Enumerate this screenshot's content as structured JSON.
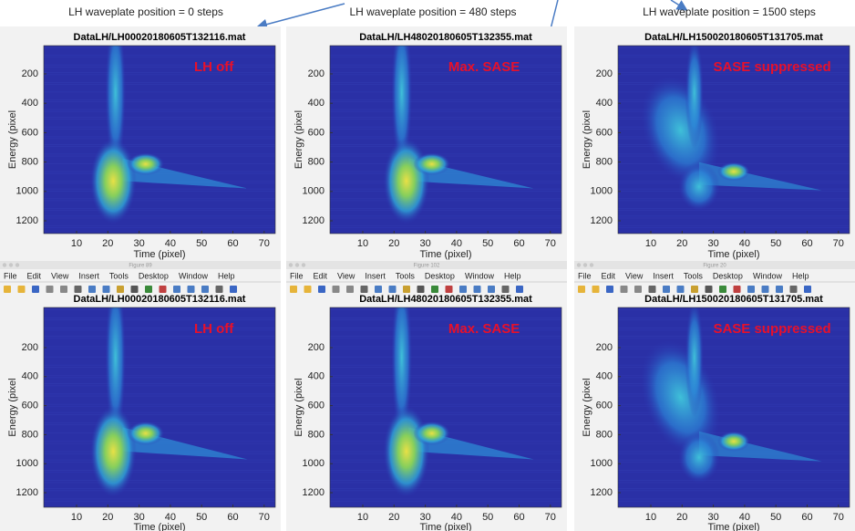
{
  "header": {
    "labels": [
      "LH waveplate position = 0 steps",
      "LH waveplate position = 480 steps",
      "LH waveplate position = 1500 steps"
    ]
  },
  "panels": [
    {
      "title": "DataLH/LH00020180605T132116.mat",
      "annotation": "LH off",
      "x_label": "Time (pixel)",
      "y_label": "Energy (pixel",
      "xticks": [
        10,
        20,
        30,
        40,
        50,
        60,
        70
      ],
      "yticks": [
        200,
        400,
        600,
        800,
        1000,
        1200
      ]
    },
    {
      "title": "DataLH/LH48020180605T132355.mat",
      "annotation": "Max. SASE",
      "x_label": "Time (pixel)",
      "y_label": "Energy (pixel",
      "xticks": [
        10,
        20,
        30,
        40,
        50,
        60,
        70
      ],
      "yticks": [
        200,
        400,
        600,
        800,
        1000,
        1200
      ]
    },
    {
      "title": "DataLH/LH150020180605T131705.mat",
      "annotation": "SASE suppressed",
      "x_label": "Time (pixel)",
      "y_label": "Energy (pixel",
      "xticks": [
        10,
        20,
        30,
        40,
        50,
        60,
        70
      ],
      "yticks": [
        200,
        400,
        600,
        800,
        1000,
        1200
      ]
    },
    {
      "title": "DataLH/LH00020180605T132116.mat",
      "annotation": "LH off",
      "x_label": "Time (pixel)",
      "y_label": "Energy (pixel",
      "xticks": [
        10,
        20,
        30,
        40,
        50,
        60,
        70
      ],
      "yticks": [
        200,
        400,
        600,
        800,
        1000,
        1200
      ]
    },
    {
      "title": "DataLH/LH48020180605T132355.mat",
      "annotation": "Max. SASE",
      "x_label": "Time (pixel)",
      "y_label": "Energy (pixel",
      "xticks": [
        10,
        20,
        30,
        40,
        50,
        60,
        70
      ],
      "yticks": [
        200,
        400,
        600,
        800,
        1000,
        1200
      ]
    },
    {
      "title": "DataLH/LH150020180605T131705.mat",
      "annotation": "SASE suppressed",
      "x_label": "Time (pixel)",
      "y_label": "Energy (pixel",
      "xticks": [
        10,
        20,
        30,
        40,
        50,
        60,
        70
      ],
      "yticks": [
        200,
        400,
        600,
        800,
        1000,
        1200
      ]
    }
  ],
  "windows": [
    {
      "title": "Figure 89",
      "menu": [
        "File",
        "Edit",
        "View",
        "Insert",
        "Tools",
        "Desktop",
        "Window",
        "Help"
      ]
    },
    {
      "title": "Figure 102",
      "menu": [
        "File",
        "Edit",
        "View",
        "Insert",
        "Tools",
        "Desktop",
        "Window",
        "Help"
      ]
    },
    {
      "title": "Figure 20",
      "menu": [
        "File",
        "Edit",
        "View",
        "Insert",
        "Tools",
        "Desktop",
        "Window",
        "Help"
      ]
    }
  ]
}
